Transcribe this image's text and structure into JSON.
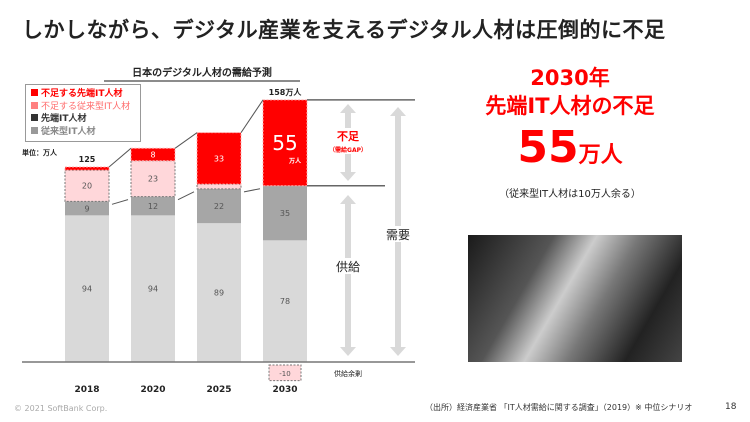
{
  "title": "しかしながら、デジタル産業を支えるデジタル人材は圧倒的に不足",
  "chart_data": {
    "type": "bar",
    "title": "日本のデジタル人材の需給予測",
    "unit_label": "単位：万人",
    "categories": [
      "2018",
      "2020",
      "2025",
      "2030"
    ],
    "series": [
      {
        "name": "従来型IT人材",
        "color": "#a6a6a6",
        "values": [
          94,
          94,
          89,
          78
        ]
      },
      {
        "name": "先端IT人材",
        "color": "#a6a6a6",
        "values": [
          9,
          12,
          22,
          35
        ]
      },
      {
        "name": "不足する従来型IT人材",
        "color": "#ffd7da",
        "values": [
          20,
          23,
          3,
          -10
        ]
      },
      {
        "name": "不足する先端IT人材",
        "color": "#ff0000",
        "values": [
          2,
          8,
          33,
          55
        ]
      }
    ],
    "segment_labels": [
      [
        "94",
        "9",
        "20",
        ""
      ],
      [
        "94",
        "12",
        "23",
        "8"
      ],
      [
        "89",
        "22",
        "",
        "33"
      ],
      [
        "78",
        "35",
        "-10",
        ""
      ]
    ],
    "legend": [
      {
        "label": "不足する先端IT人材",
        "color": "#ff0000"
      },
      {
        "label": "不足する従来型IT人材",
        "color": "#ff6b6b"
      },
      {
        "label": "先端IT人材",
        "color": "#333333"
      },
      {
        "label": "従来型IT人材",
        "color": "#999999"
      }
    ],
    "totals": {
      "first": "125",
      "last": "158万人"
    },
    "highlight": {
      "value": "55",
      "unit": "万人"
    },
    "annotations": {
      "gap": "不足",
      "gap_sub": "（需給GAP）",
      "supply": "供給",
      "demand": "需要",
      "surplus": "供給余剰"
    }
  },
  "right": {
    "line1": "2030年",
    "line2": "先端IT人材の不足",
    "big": "55",
    "big_unit": "万人",
    "note": "（従来型IT人材は10万人余る）"
  },
  "footer": {
    "copyright": "© 2021 SoftBank Corp.",
    "source": "（出所）経済産業省 「IT人材需給に関する調査」（2019）※ 中位シナリオ",
    "page": "18"
  }
}
